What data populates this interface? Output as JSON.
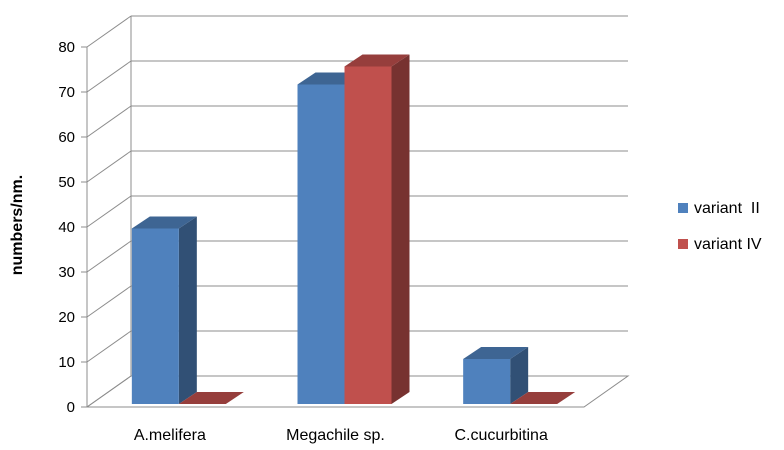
{
  "chart_data": {
    "type": "bar",
    "style": "3d-clustered-column",
    "categories": [
      "A.melifera",
      "Megachile sp.",
      "C.cucurbitina"
    ],
    "series": [
      {
        "name": "variant  II",
        "values": [
          39,
          71,
          10
        ],
        "color": "#4F81BD"
      },
      {
        "name": "variant IV",
        "values": [
          0,
          75,
          0
        ],
        "color": "#C0504D"
      }
    ],
    "ylabel": "numbers/nm.",
    "xlabel": "",
    "ylim": [
      0,
      80
    ],
    "yticks": [
      0,
      10,
      20,
      30,
      40,
      50,
      60,
      70,
      80
    ],
    "grid": true,
    "legend_position": "right"
  }
}
